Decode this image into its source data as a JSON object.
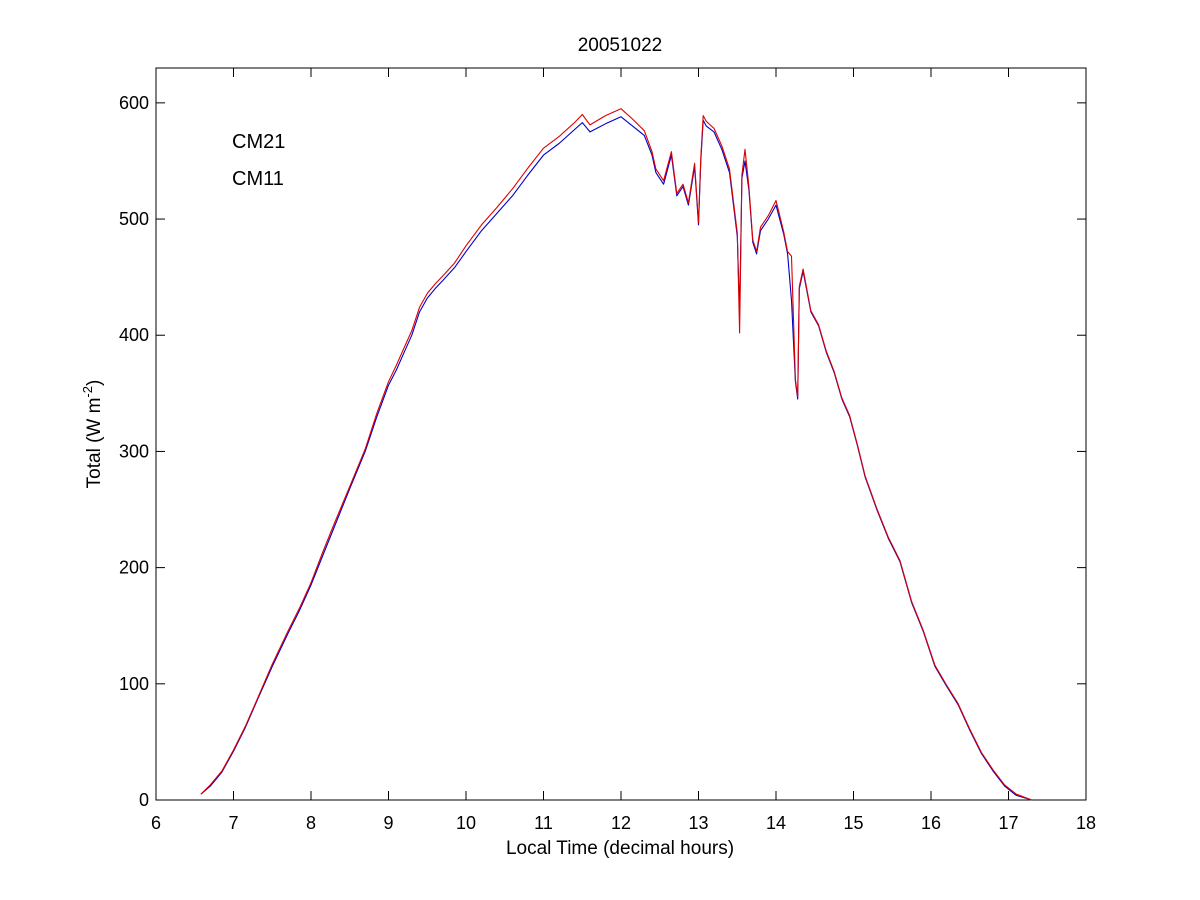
{
  "chart_data": {
    "type": "line",
    "title": "20051022",
    "xlabel": "Local Time (decimal hours)",
    "ylabel": {
      "base": "Total (W m",
      "sup": "-2",
      "end": ")"
    },
    "xlim": [
      6,
      18
    ],
    "ylim": [
      0,
      630
    ],
    "xticks": [
      6,
      7,
      8,
      9,
      10,
      11,
      12,
      13,
      14,
      15,
      16,
      17,
      18
    ],
    "yticks": [
      0,
      100,
      200,
      300,
      400,
      500,
      600
    ],
    "grid": false,
    "legend_position": "top-left",
    "series": [
      {
        "name": "CM21",
        "color": "#0000cc",
        "x": [
          6.58,
          6.7,
          6.85,
          7.0,
          7.15,
          7.3,
          7.5,
          7.7,
          7.85,
          8.0,
          8.15,
          8.3,
          8.5,
          8.7,
          8.85,
          9.0,
          9.1,
          9.2,
          9.3,
          9.4,
          9.5,
          9.6,
          9.7,
          9.85,
          10.0,
          10.2,
          10.4,
          10.6,
          10.8,
          11.0,
          11.2,
          11.4,
          11.5,
          11.6,
          11.8,
          12.0,
          12.15,
          12.3,
          12.4,
          12.45,
          12.55,
          12.65,
          12.72,
          12.8,
          12.87,
          12.95,
          13.0,
          13.03,
          13.06,
          13.1,
          13.2,
          13.3,
          13.4,
          13.5,
          13.53,
          13.56,
          13.6,
          13.65,
          13.7,
          13.75,
          13.8,
          13.9,
          14.0,
          14.1,
          14.15,
          14.2,
          14.25,
          14.28,
          14.3,
          14.35,
          14.45,
          14.55,
          14.65,
          14.75,
          14.85,
          14.95,
          15.05,
          15.15,
          15.3,
          15.45,
          15.6,
          15.75,
          15.9,
          16.05,
          16.2,
          16.35,
          16.5,
          16.65,
          16.8,
          16.95,
          17.1,
          17.3
        ],
        "y": [
          5,
          12,
          24,
          42,
          62,
          85,
          115,
          143,
          163,
          185,
          210,
          235,
          268,
          300,
          330,
          357,
          370,
          385,
          400,
          420,
          432,
          440,
          447,
          458,
          472,
          490,
          505,
          520,
          538,
          555,
          565,
          577,
          583,
          575,
          582,
          588,
          580,
          572,
          555,
          540,
          530,
          555,
          520,
          528,
          512,
          545,
          495,
          550,
          585,
          580,
          575,
          560,
          540,
          485,
          420,
          535,
          550,
          525,
          480,
          470,
          490,
          500,
          512,
          487,
          470,
          430,
          360,
          345,
          440,
          455,
          420,
          408,
          385,
          368,
          345,
          330,
          305,
          278,
          250,
          225,
          205,
          170,
          145,
          115,
          98,
          82,
          60,
          40,
          25,
          12,
          4,
          0
        ]
      },
      {
        "name": "CM11",
        "color": "#dd0000",
        "x": [
          6.58,
          6.7,
          6.85,
          7.0,
          7.15,
          7.3,
          7.5,
          7.7,
          7.85,
          8.0,
          8.15,
          8.3,
          8.5,
          8.7,
          8.85,
          9.0,
          9.1,
          9.2,
          9.3,
          9.4,
          9.5,
          9.6,
          9.7,
          9.85,
          10.0,
          10.2,
          10.4,
          10.6,
          10.8,
          11.0,
          11.2,
          11.4,
          11.5,
          11.6,
          11.8,
          12.0,
          12.15,
          12.3,
          12.4,
          12.45,
          12.55,
          12.65,
          12.72,
          12.8,
          12.87,
          12.95,
          13.0,
          13.03,
          13.06,
          13.1,
          13.2,
          13.3,
          13.4,
          13.5,
          13.53,
          13.56,
          13.6,
          13.65,
          13.7,
          13.75,
          13.8,
          13.9,
          14.0,
          14.1,
          14.15,
          14.2,
          14.25,
          14.28,
          14.3,
          14.35,
          14.45,
          14.55,
          14.65,
          14.75,
          14.85,
          14.95,
          15.05,
          15.15,
          15.3,
          15.45,
          15.6,
          15.75,
          15.9,
          16.05,
          16.2,
          16.35,
          16.5,
          16.65,
          16.8,
          16.95,
          17.1,
          17.3
        ],
        "y": [
          5,
          13,
          25,
          43,
          63,
          86,
          117,
          145,
          165,
          187,
          213,
          238,
          270,
          302,
          333,
          360,
          374,
          389,
          404,
          424,
          436,
          444,
          451,
          462,
          477,
          495,
          510,
          526,
          544,
          561,
          571,
          583,
          590,
          581,
          589,
          595,
          586,
          576,
          558,
          543,
          533,
          558,
          522,
          530,
          514,
          548,
          497,
          553,
          589,
          584,
          578,
          563,
          543,
          488,
          402,
          538,
          560,
          528,
          482,
          472,
          493,
          503,
          516,
          489,
          472,
          468,
          362,
          347,
          442,
          457,
          421,
          409,
          386,
          369,
          346,
          331,
          306,
          279,
          251,
          226,
          206,
          171,
          146,
          116,
          99,
          83,
          61,
          41,
          26,
          13,
          5,
          0
        ]
      }
    ]
  }
}
